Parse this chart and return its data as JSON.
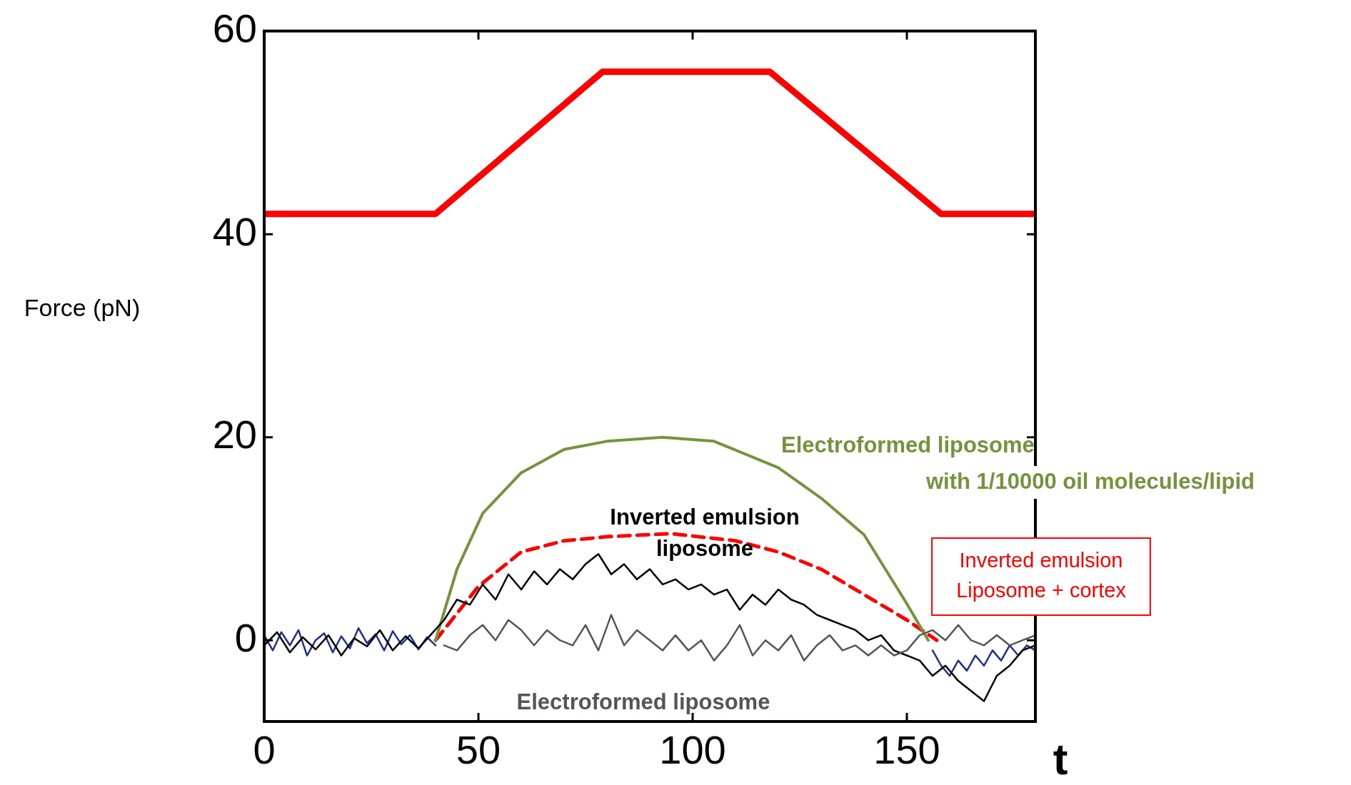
{
  "chart_data": {
    "type": "line",
    "xlabel": "t",
    "ylabel": "Force (pN)",
    "xlim": [
      0,
      180
    ],
    "xticks": [
      0,
      50,
      100,
      150
    ],
    "ylim": [
      -8,
      60
    ],
    "yticks": [
      0,
      20,
      40,
      60
    ],
    "grid": false,
    "legend": false,
    "marker": "none",
    "series": [
      {
        "color": "#555555",
        "x": [
          42,
          45,
          48,
          51,
          54,
          57,
          60,
          63,
          66,
          69,
          72,
          75,
          78,
          81,
          84,
          87,
          90,
          93,
          96,
          99,
          102,
          105,
          108,
          111,
          114,
          117,
          120,
          123,
          126,
          129,
          132,
          135,
          138,
          141,
          144,
          147,
          150,
          153,
          156,
          159,
          162,
          165,
          168,
          171,
          174,
          177,
          180
        ],
        "values": [
          -0.5,
          -1,
          0.5,
          1.5,
          0,
          2,
          1,
          -0.5,
          1,
          0,
          -0.5,
          1.5,
          -1,
          2.5,
          -0.5,
          1,
          0,
          -1,
          0.5,
          -1,
          0,
          -2,
          -0.5,
          1.5,
          -1.5,
          0,
          -1,
          0.5,
          -2,
          -0.5,
          0.5,
          -1,
          -0.5,
          -1.5,
          -0.5,
          -1.5,
          -1,
          0.5,
          1,
          0,
          1.5,
          0,
          -0.5,
          0.5,
          -0.5,
          0,
          0.5
        ]
      },
      {
        "color": "#000000",
        "x": [
          0,
          3,
          6,
          9,
          12,
          15,
          18,
          21,
          24,
          27,
          30,
          33,
          36,
          39,
          42,
          45,
          48,
          51,
          54,
          57,
          60,
          63,
          66,
          69,
          72,
          75,
          78,
          81,
          84,
          87,
          90,
          93,
          96,
          99,
          102,
          105,
          108,
          111,
          114,
          117,
          120,
          123,
          126,
          129,
          132,
          135,
          138,
          141,
          144,
          147,
          150,
          153,
          156,
          159,
          162,
          165,
          168,
          171,
          174,
          177,
          180
        ],
        "values": [
          -0.5,
          0.8,
          -1.2,
          0.3,
          -0.9,
          0.5,
          -1.5,
          0.2,
          -0.6,
          1,
          -1,
          0.4,
          -0.8,
          0.6,
          2,
          4,
          3.5,
          5.5,
          4,
          6.5,
          5,
          6.8,
          5.5,
          7,
          6,
          7.5,
          8.5,
          6.5,
          7.5,
          6,
          7,
          5.5,
          6,
          5,
          5.5,
          4.5,
          5,
          3,
          4.5,
          3.5,
          5,
          4,
          3.5,
          2.5,
          2,
          1.5,
          1,
          0,
          0.5,
          -1,
          -1.5,
          -2,
          -3.5,
          -2.5,
          -4,
          -5,
          -6,
          -3.5,
          -2.5,
          -1,
          -0.5
        ]
      },
      {
        "color": "#1f2f8f",
        "x": [
          0,
          2,
          4,
          6,
          8,
          10,
          12,
          14,
          16,
          18,
          20,
          22,
          24,
          26,
          28,
          30,
          32,
          34,
          36,
          38,
          40,
          41,
          156,
          158,
          160,
          162,
          164,
          166,
          168,
          170,
          172,
          174,
          176,
          178,
          180
        ],
        "values": [
          0.5,
          -1,
          0.8,
          -0.5,
          1,
          -1.5,
          0,
          0.7,
          -1.2,
          0.4,
          -0.8,
          1.2,
          -0.3,
          0.6,
          -1,
          0.9,
          -0.4,
          0.5,
          -0.9,
          0.3,
          -0.5,
          null,
          -1,
          -2.5,
          -3.5,
          -2,
          -3,
          -1.5,
          -2.5,
          -1,
          -2,
          -0.5,
          -1.5,
          -0.5,
          -1
        ]
      },
      {
        "color": "#76923c",
        "x": [
          40,
          45,
          51,
          60,
          70,
          80,
          93,
          105,
          120,
          130,
          140,
          150,
          155
        ],
        "values": [
          0,
          7,
          12.5,
          16.5,
          18.8,
          19.6,
          20,
          19.6,
          17,
          14,
          10.4,
          3.6,
          0
        ]
      },
      {
        "color": "#ff0000",
        "line_style": "dashed",
        "x": [
          40,
          50,
          60,
          70,
          80,
          95,
          110,
          120,
          130,
          140,
          150,
          157
        ],
        "values": [
          0,
          5.3,
          8.7,
          9.8,
          10.2,
          10.5,
          9.8,
          8.7,
          7,
          4.5,
          2,
          0
        ]
      },
      {
        "color": "#ff0000",
        "x": [
          0,
          40,
          79,
          118,
          158,
          180
        ],
        "values": [
          42,
          42,
          56,
          56,
          42,
          42
        ]
      }
    ],
    "annotations": [
      "Electroformed liposome",
      "with 1/10000 oil molecules/lipid",
      "Inverted emulsion",
      "liposome",
      "Inverted emulsion\nLiposome + cortex",
      "Electroformed liposome"
    ]
  }
}
